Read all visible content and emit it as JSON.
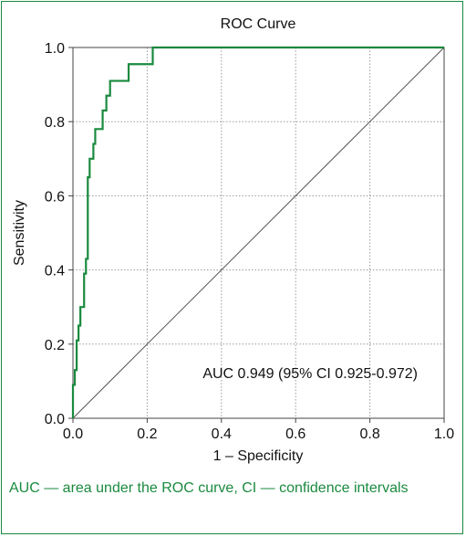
{
  "chart_data": {
    "type": "line",
    "title": "ROC Curve",
    "xlabel": "1 – Specificity",
    "ylabel": "Sensitivity",
    "xlim": [
      0.0,
      1.0
    ],
    "ylim": [
      0.0,
      1.0
    ],
    "x_ticks": [
      "0.0",
      "0.2",
      "0.4",
      "0.6",
      "0.8",
      "1.0"
    ],
    "y_ticks": [
      "0.0",
      "0.2",
      "0.4",
      "0.6",
      "0.8",
      "1.0"
    ],
    "grid": true,
    "annotation": "AUC 0.949 (95% CI 0.925-0.972)",
    "series": [
      {
        "color": "#1a8a3f",
        "points": [
          [
            0.0,
            0.0
          ],
          [
            0.0,
            0.09
          ],
          [
            0.005,
            0.09
          ],
          [
            0.005,
            0.13
          ],
          [
            0.01,
            0.13
          ],
          [
            0.01,
            0.21
          ],
          [
            0.015,
            0.21
          ],
          [
            0.015,
            0.25
          ],
          [
            0.02,
            0.25
          ],
          [
            0.02,
            0.3
          ],
          [
            0.03,
            0.3
          ],
          [
            0.03,
            0.39
          ],
          [
            0.035,
            0.39
          ],
          [
            0.035,
            0.43
          ],
          [
            0.04,
            0.43
          ],
          [
            0.04,
            0.65
          ],
          [
            0.045,
            0.65
          ],
          [
            0.045,
            0.7
          ],
          [
            0.055,
            0.7
          ],
          [
            0.055,
            0.74
          ],
          [
            0.06,
            0.74
          ],
          [
            0.06,
            0.78
          ],
          [
            0.08,
            0.78
          ],
          [
            0.08,
            0.83
          ],
          [
            0.09,
            0.83
          ],
          [
            0.09,
            0.87
          ],
          [
            0.1,
            0.87
          ],
          [
            0.1,
            0.91
          ],
          [
            0.15,
            0.91
          ],
          [
            0.15,
            0.955
          ],
          [
            0.215,
            0.955
          ],
          [
            0.215,
            1.0
          ],
          [
            1.0,
            1.0
          ]
        ]
      },
      {
        "color": "#555555",
        "points": [
          [
            0.0,
            0.0
          ],
          [
            1.0,
            1.0
          ]
        ]
      }
    ]
  },
  "caption": "AUC — area under the ROC curve, CI — confidence intervals"
}
